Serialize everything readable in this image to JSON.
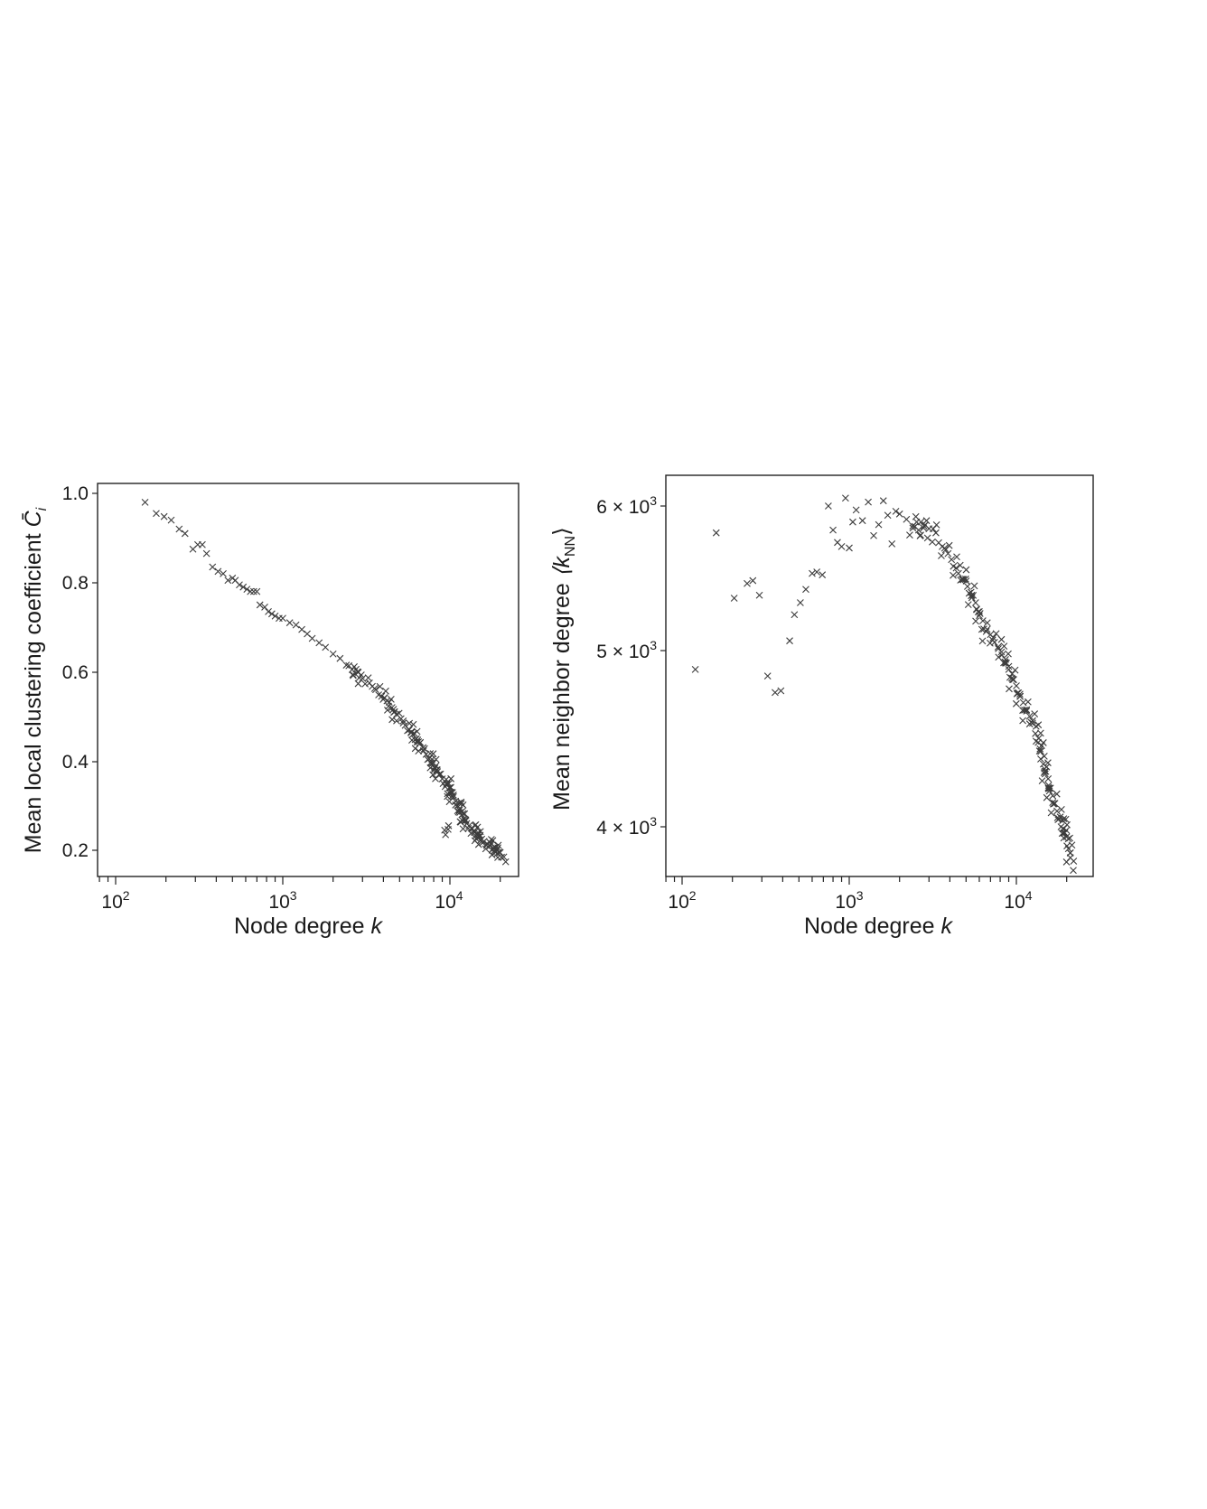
{
  "chart_data": [
    {
      "type": "scatter",
      "marker": "x",
      "title": "",
      "xlabel": "Node degree k",
      "ylabel": "Mean local clustering coefficient C̄_i",
      "xscale": "log",
      "xlim": [
        80,
        30000
      ],
      "ylim": [
        0.14,
        1.02
      ],
      "xticks": [
        100,
        1000,
        10000
      ],
      "xtick_labels": [
        "10^2",
        "10^3",
        "10^4"
      ],
      "yticks": [
        0.2,
        0.4,
        0.6,
        0.8,
        1.0
      ],
      "ytick_labels": [
        "0.2",
        "0.4",
        "0.6",
        "0.8",
        "1.0"
      ],
      "grid": false,
      "legend": null,
      "x": [
        150,
        175,
        195,
        215,
        240,
        260,
        290,
        310,
        330,
        350,
        380,
        410,
        440,
        470,
        500,
        520,
        550,
        580,
        610,
        640,
        670,
        700,
        730,
        780,
        820,
        860,
        900,
        950,
        1000,
        1100,
        1200,
        1300,
        1400,
        1500,
        1650,
        1800,
        2000,
        2200,
        2400,
        2600,
        2800,
        3000,
        3300,
        3600,
        3900,
        4200,
        4500,
        4800,
        5100,
        5400,
        5700,
        6000,
        6300,
        6600,
        6900,
        7200,
        7500,
        7800,
        8100,
        8400,
        8700,
        9000,
        9300,
        9600,
        9900,
        10200,
        10500,
        10800,
        11100,
        11400,
        11800,
        12200,
        12600,
        13000,
        13500,
        14000,
        14500,
        15000,
        15500,
        16000,
        16700,
        17400,
        18200,
        19000,
        20000,
        21000
      ],
      "y": [
        0.98,
        0.955,
        0.948,
        0.94,
        0.92,
        0.91,
        0.875,
        0.885,
        0.885,
        0.865,
        0.835,
        0.825,
        0.82,
        0.805,
        0.81,
        0.805,
        0.795,
        0.79,
        0.785,
        0.78,
        0.78,
        0.78,
        0.75,
        0.745,
        0.735,
        0.73,
        0.725,
        0.72,
        0.72,
        0.71,
        0.705,
        0.695,
        0.685,
        0.675,
        0.665,
        0.655,
        0.64,
        0.63,
        0.615,
        0.605,
        0.6,
        0.585,
        0.575,
        0.56,
        0.545,
        0.535,
        0.52,
        0.505,
        0.495,
        0.48,
        0.47,
        0.46,
        0.45,
        0.44,
        0.43,
        0.415,
        0.405,
        0.395,
        0.385,
        0.38,
        0.37,
        0.36,
        0.245,
        0.35,
        0.34,
        0.33,
        0.32,
        0.31,
        0.3,
        0.29,
        0.28,
        0.27,
        0.26,
        0.255,
        0.25,
        0.24,
        0.235,
        0.23,
        0.225,
        0.22,
        0.215,
        0.21,
        0.205,
        0.2,
        0.195,
        0.185
      ]
    },
    {
      "type": "scatter",
      "marker": "x",
      "title": "",
      "xlabel": "Node degree k",
      "ylabel": "Mean neighbor degree ⟨k_NN⟩",
      "xscale": "log",
      "yscale": "log",
      "xlim": [
        80,
        30000
      ],
      "ylim": [
        3750,
        6200
      ],
      "xticks": [
        100,
        1000,
        10000
      ],
      "xtick_labels": [
        "10^2",
        "10^3",
        "10^4"
      ],
      "yticks": [
        4000,
        5000,
        6000
      ],
      "ytick_labels": [
        "4 × 10^3",
        "5 × 10^3",
        "6 × 10^3"
      ],
      "grid": false,
      "legend": null,
      "x": [
        120,
        160,
        205,
        245,
        265,
        290,
        325,
        360,
        390,
        440,
        470,
        510,
        550,
        600,
        640,
        690,
        750,
        800,
        850,
        900,
        950,
        1000,
        1050,
        1100,
        1200,
        1300,
        1400,
        1500,
        1600,
        1700,
        1800,
        1900,
        2000,
        2200,
        2400,
        2600,
        2800,
        3000,
        3300,
        3600,
        3900,
        4200,
        4500,
        4800,
        5100,
        5400,
        5700,
        6000,
        6300,
        6600,
        7000,
        7400,
        7800,
        8200,
        8600,
        9000,
        9500,
        10000,
        10500,
        11000,
        11500,
        12000,
        12500,
        13000,
        13500,
        14000,
        14500,
        15000,
        15500,
        16000,
        16500,
        17000,
        17500,
        18000,
        18500,
        19000,
        19500,
        20000,
        21000,
        22000
      ],
      "y": [
        4880,
        5800,
        5340,
        5440,
        5460,
        5360,
        4840,
        4740,
        4750,
        5060,
        5230,
        5310,
        5400,
        5510,
        5520,
        5500,
        6000,
        5820,
        5730,
        5700,
        6060,
        5690,
        5880,
        5970,
        5890,
        6030,
        5780,
        5860,
        6040,
        5930,
        5720,
        5960,
        5940,
        5900,
        5850,
        5820,
        5850,
        5830,
        5800,
        5700,
        5650,
        5560,
        5510,
        5470,
        5420,
        5360,
        5310,
        5250,
        5190,
        5120,
        5100,
        5050,
        5010,
        4970,
        4920,
        4880,
        4820,
        4780,
        4730,
        4680,
        4630,
        4600,
        4560,
        4500,
        4450,
        4400,
        4330,
        4290,
        4250,
        4200,
        4160,
        4120,
        4080,
        4040,
        4000,
        3990,
        3970,
        3950,
        3870,
        3830
      ]
    }
  ],
  "left": {
    "ylabel_main": "Mean local clustering coefficient ",
    "ylabel_sym": "C̄",
    "ylabel_sub": "i",
    "xlabel_main": "Node degree ",
    "xlabel_sym": "k",
    "yticks": [
      "1.0",
      "0.8",
      "0.6",
      "0.4",
      "0.2"
    ],
    "xticks_base": [
      "10",
      "10",
      "10"
    ],
    "xticks_exp": [
      "2",
      "3",
      "4"
    ]
  },
  "right": {
    "ylabel_main": "Mean neighbor degree ",
    "ylabel_sym": "⟨k",
    "ylabel_sub": "NN",
    "ylabel_close": "⟩",
    "xlabel_main": "Node degree ",
    "xlabel_sym": "k",
    "yticks_mant": [
      "6 × 10",
      "5 × 10",
      "4 × 10"
    ],
    "yticks_exp": [
      "3",
      "3",
      "3"
    ],
    "xticks_base": [
      "10",
      "10",
      "10"
    ],
    "xticks_exp": [
      "2",
      "3",
      "4"
    ]
  },
  "colors": {
    "marker": "#3c3c3c",
    "axis": "#222222",
    "background": "#ffffff"
  }
}
